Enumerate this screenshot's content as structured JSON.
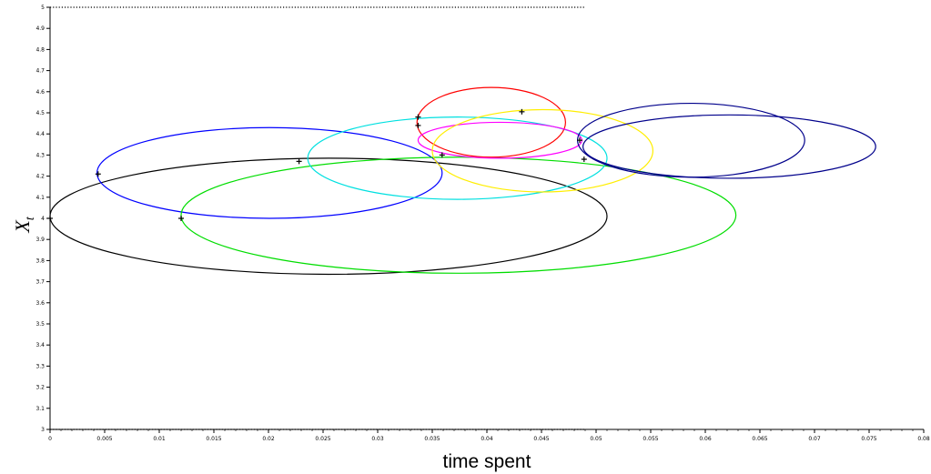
{
  "chart_data": {
    "type": "scatter",
    "title": "",
    "xlabel": "time spent",
    "ylabel": {
      "main": "X",
      "sub": "t"
    },
    "xlim": [
      0,
      0.08
    ],
    "ylim": [
      3,
      5
    ],
    "x_ticks": [
      0,
      0.005,
      0.01,
      0.015,
      0.02,
      0.025,
      0.03,
      0.035,
      0.04,
      0.045,
      0.05,
      0.055,
      0.06,
      0.065,
      0.07,
      0.075,
      0.08
    ],
    "y_ticks": [
      3,
      3.1,
      3.2,
      3.3,
      3.4,
      3.5,
      3.6,
      3.7,
      3.8,
      3.9,
      4,
      4.1,
      4.2,
      4.3,
      4.4,
      4.5,
      4.6,
      4.7,
      4.8,
      4.9,
      5
    ],
    "grid": false,
    "legend": "none",
    "series": [
      {
        "color": "#000000",
        "cx": 0.0255,
        "cy": 4.01,
        "rx": 0.0255,
        "ry": 0.275,
        "marker": [
          0.0,
          4.0
        ]
      },
      {
        "color": "#0000ff",
        "cx": 0.0201,
        "cy": 4.215,
        "rx": 0.0158,
        "ry": 0.215,
        "marker": [
          0.0044,
          4.21
        ]
      },
      {
        "color": "#00dd00",
        "cx": 0.0374,
        "cy": 4.015,
        "rx": 0.0254,
        "ry": 0.275,
        "marker": [
          0.012,
          4.0
        ]
      },
      {
        "color": "#00e0e0",
        "cx": 0.0373,
        "cy": 4.285,
        "rx": 0.0137,
        "ry": 0.195,
        "marker": [
          0.0228,
          4.27
        ]
      },
      {
        "color": "#ff0000",
        "cx": 0.0404,
        "cy": 4.455,
        "rx": 0.0068,
        "ry": 0.165,
        "marker": [
          0.0337,
          4.48
        ]
      },
      {
        "color": "#ff00ff",
        "cx": 0.0412,
        "cy": 4.37,
        "rx": 0.0075,
        "ry": 0.085,
        "marker": [
          0.0337,
          4.44
        ]
      },
      {
        "color": "#ffee00",
        "cx": 0.0451,
        "cy": 4.32,
        "rx": 0.0101,
        "ry": 0.195,
        "marker": [
          0.0359,
          4.3
        ]
      },
      {
        "color": "#00008b",
        "cx": 0.0587,
        "cy": 4.37,
        "rx": 0.0104,
        "ry": 0.175,
        "marker": [
          0.0485,
          4.37
        ]
      },
      {
        "color": "#00008b",
        "cx": 0.0622,
        "cy": 4.34,
        "rx": 0.0134,
        "ry": 0.15,
        "marker": [
          0.0489,
          4.28
        ]
      },
      {
        "color": "#000000",
        "cx": null,
        "cy": null,
        "rx": null,
        "ry": null,
        "marker": [
          0.0432,
          4.505
        ]
      }
    ]
  }
}
